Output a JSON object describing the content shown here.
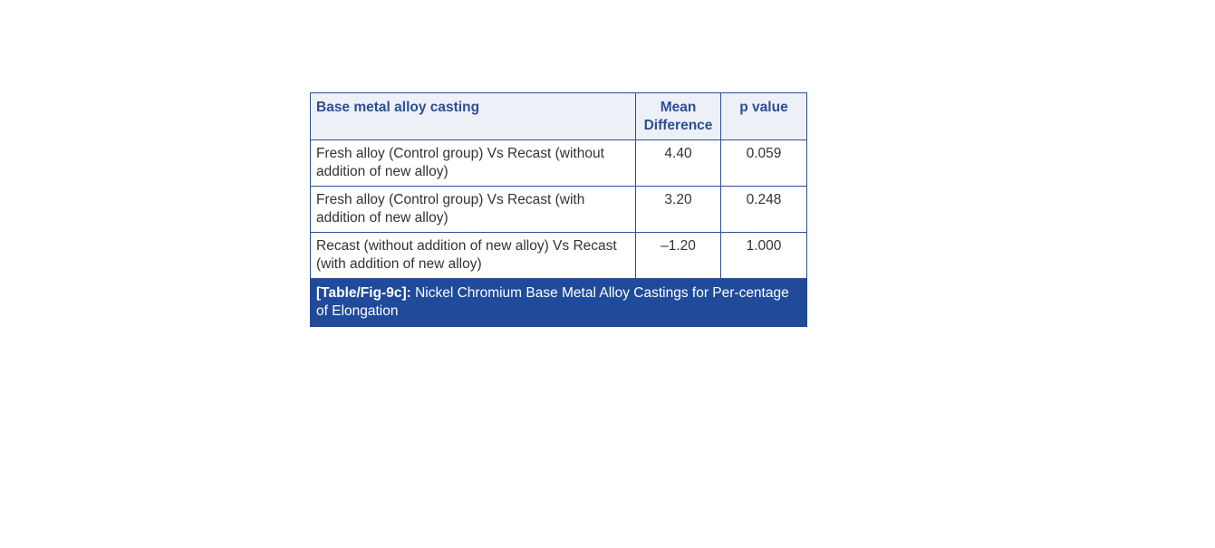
{
  "table": {
    "headers": {
      "comparison": "Base metal alloy casting",
      "mean_difference": "Mean Difference",
      "p_value": "p value"
    },
    "rows": [
      {
        "comparison": "Fresh alloy (Control group) Vs Recast (without addition of new alloy)",
        "mean_difference": "4.40",
        "p_value": "0.059"
      },
      {
        "comparison": "Fresh alloy (Control group) Vs Recast (with addition of new alloy)",
        "mean_difference": "3.20",
        "p_value": "0.248"
      },
      {
        "comparison": "Recast (without addition of new alloy) Vs Recast (with addition of new alloy)",
        "mean_difference": "–1.20",
        "p_value": "1.000"
      }
    ]
  },
  "caption": {
    "label": "[Table/Fig-9c]:",
    "text": " Nickel Chromium Base Metal Alloy Castings for Per-centage of Elongation"
  },
  "colors": {
    "header_text": "#2c4f94",
    "header_bg": "#eef0f8",
    "border": "#2d4f93",
    "caption_bg": "#204a9a"
  }
}
